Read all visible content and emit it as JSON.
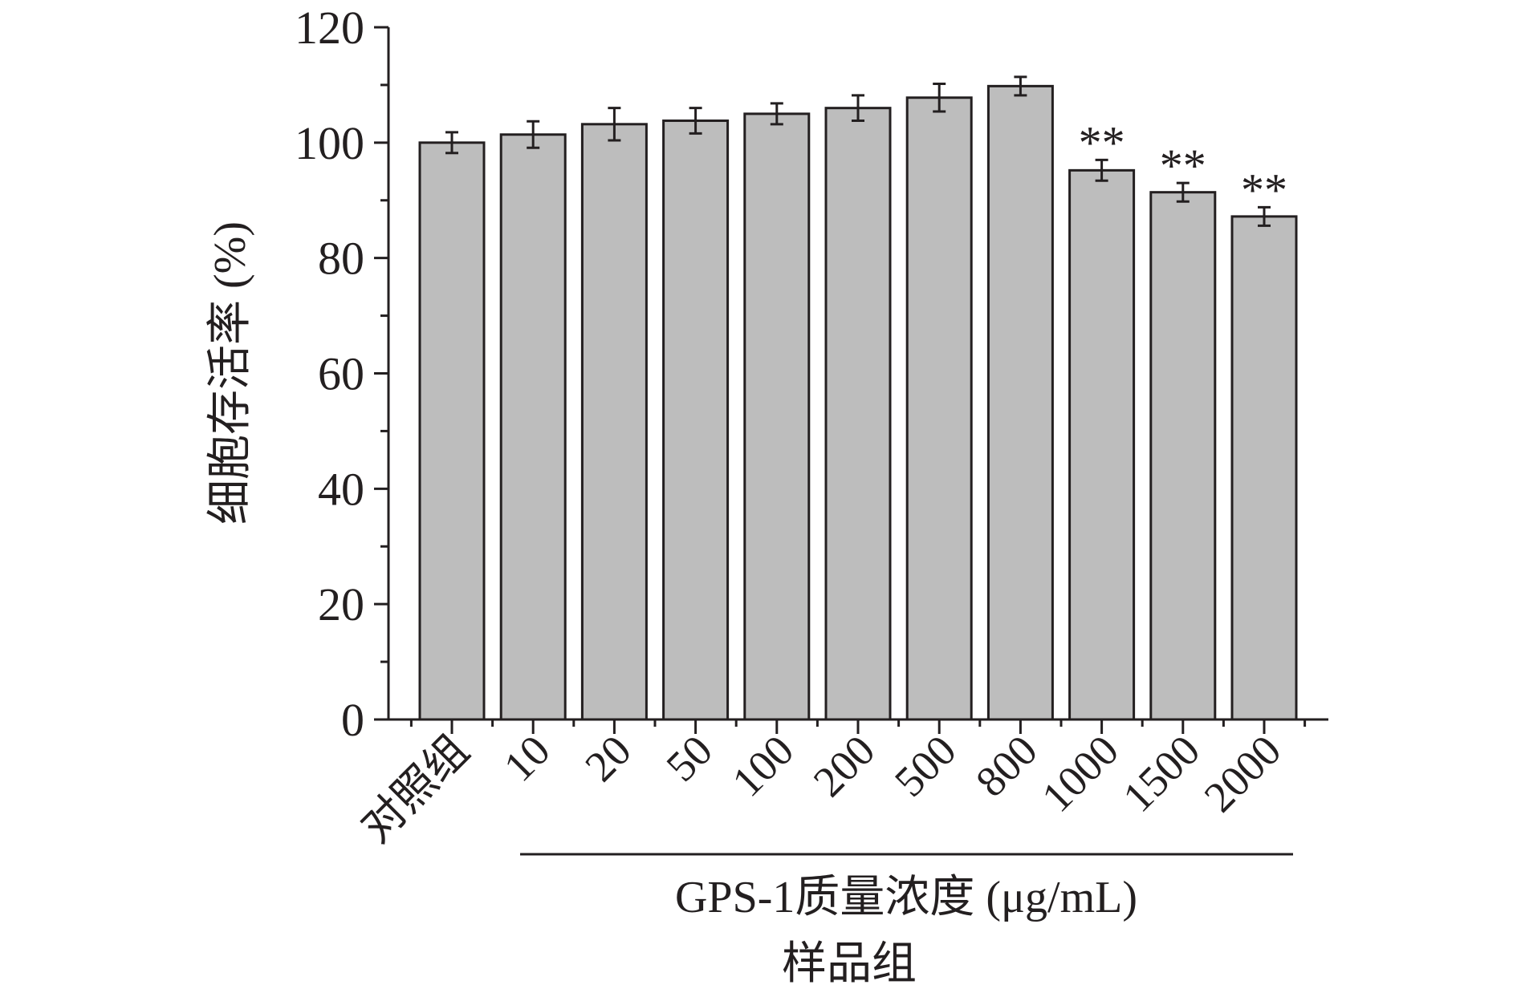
{
  "chart_data": {
    "type": "bar",
    "categories": [
      "对照组",
      "10",
      "20",
      "50",
      "100",
      "200",
      "500",
      "800",
      "1000",
      "1500",
      "2000"
    ],
    "values": [
      100.0,
      101.4,
      103.2,
      103.8,
      105.0,
      106.0,
      107.8,
      109.8,
      95.2,
      91.4,
      87.2
    ],
    "errors": [
      1.8,
      2.3,
      2.8,
      2.2,
      1.8,
      2.2,
      2.4,
      1.6,
      1.8,
      1.6,
      1.6
    ],
    "significance": [
      "",
      "",
      "",
      "",
      "",
      "",
      "",
      "",
      "**",
      "**",
      "**"
    ],
    "ylabel": "细胞存活率 (%)",
    "xlabel_group": "GPS-1质量浓度 (μg/mL)",
    "xlabel": "样品组",
    "ylim": [
      0,
      120
    ],
    "yticks": [
      "0",
      "20",
      "40",
      "60",
      "80",
      "100",
      "120"
    ],
    "bar_color": "#bdbdbd",
    "grid": false
  }
}
